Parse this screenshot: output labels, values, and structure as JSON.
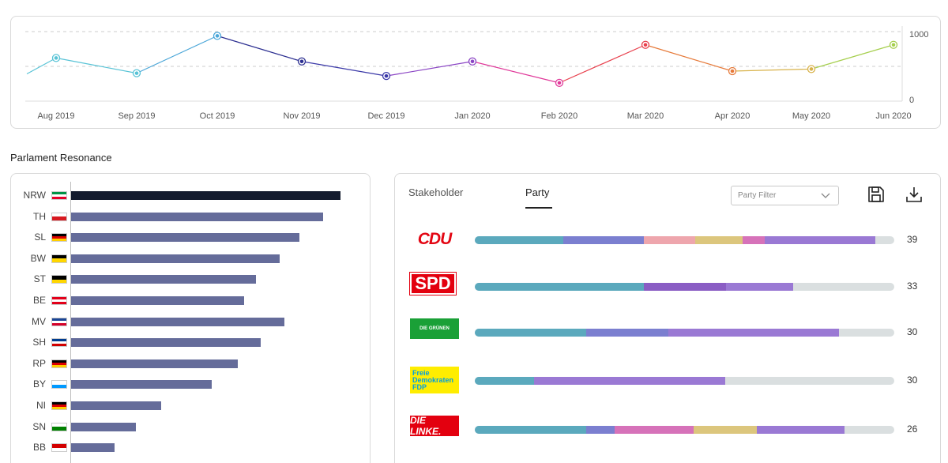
{
  "timeline": {
    "y_axis_labels": [
      "1000",
      "0"
    ],
    "months": [
      "Aug 2019",
      "Sep 2019",
      "Oct 2019",
      "Nov 2019",
      "Dec 2019",
      "Jan 2020",
      "Feb 2020",
      "Mar 2020",
      "Apr 2020",
      "May 2020",
      "Jun 2020"
    ],
    "values": [
      590,
      370,
      910,
      540,
      330,
      540,
      230,
      780,
      400,
      430,
      780
    ],
    "start_value": 360,
    "point_colors": [
      "#58c3d6",
      "#58c3d6",
      "#4aa6d8",
      "#2c2f91",
      "#3b39a8",
      "#8a44c4",
      "#e0399a",
      "#e8404d",
      "#e67a3a",
      "#d8b24a",
      "#a6cf4e"
    ]
  },
  "section_title": "Parlament Resonance",
  "states": [
    {
      "code": "NRW",
      "value": 100,
      "flag": [
        "#009246",
        "#ffffff",
        "#e4002b"
      ],
      "highlight": true
    },
    {
      "code": "TH",
      "value": 93.5,
      "flag": [
        "#ffffff",
        "#d71920"
      ]
    },
    {
      "code": "SL",
      "value": 84.7,
      "flag": [
        "#000000",
        "#dd0000",
        "#ffce00"
      ]
    },
    {
      "code": "BW",
      "value": 77.4,
      "flag": [
        "#000000",
        "#ffd600"
      ]
    },
    {
      "code": "ST",
      "value": 68.6,
      "flag": [
        "#000000",
        "#ffd600"
      ]
    },
    {
      "code": "BE",
      "value": 64.2,
      "flag": [
        "#e2001a",
        "#ffffff",
        "#e2001a"
      ]
    },
    {
      "code": "MV",
      "value": 79.2,
      "flag": [
        "#1a4595",
        "#ffffff",
        "#d40029"
      ]
    },
    {
      "code": "SH",
      "value": 70.4,
      "flag": [
        "#003c8f",
        "#ffffff",
        "#d00000"
      ]
    },
    {
      "code": "RP",
      "value": 61.9,
      "flag": [
        "#000000",
        "#dd0000",
        "#ffce00"
      ]
    },
    {
      "code": "BY",
      "value": 52.2,
      "flag": [
        "#ffffff",
        "#0099ff"
      ]
    },
    {
      "code": "NI",
      "value": 33.4,
      "flag": [
        "#000000",
        "#dd0000",
        "#ffce00"
      ]
    },
    {
      "code": "SN",
      "value": 24.0,
      "flag": [
        "#ffffff",
        "#008000"
      ]
    },
    {
      "code": "BB",
      "value": 16.1,
      "flag": [
        "#d30000",
        "#ffffff"
      ]
    }
  ],
  "party_panel": {
    "tabs": [
      "Stakeholder",
      "Party"
    ],
    "active_tab": "Party",
    "filter_placeholder": "Party Filter",
    "parties": [
      {
        "name": "CDU",
        "count": "39",
        "segments": [
          {
            "share": 21.1,
            "color": "#5ba9bd"
          },
          {
            "share": 19.2,
            "color": "#7b7fd0"
          },
          {
            "share": 12.2,
            "color": "#eea6ad"
          },
          {
            "share": 11.3,
            "color": "#dcc67d"
          },
          {
            "share": 5.3,
            "color": "#d672b9"
          },
          {
            "share": 26.4,
            "color": "#9a79d4"
          }
        ]
      },
      {
        "name": "SPD",
        "count": "33",
        "segments": [
          {
            "share": 40.3,
            "color": "#5ba9bd"
          },
          {
            "share": 19.6,
            "color": "#8a5dc4"
          },
          {
            "share": 16.0,
            "color": "#9a79d4"
          }
        ]
      },
      {
        "name": "DIE GRÜNEN",
        "count": "30",
        "segments": [
          {
            "share": 26.6,
            "color": "#5ba9bd"
          },
          {
            "share": 19.6,
            "color": "#7b7fd0"
          },
          {
            "share": 40.7,
            "color": "#9a79d4"
          }
        ]
      },
      {
        "name": "Freie Demokraten FDP",
        "count": "30",
        "segments": [
          {
            "share": 14.1,
            "color": "#5ba9bd"
          },
          {
            "share": 45.6,
            "color": "#9a79d4"
          }
        ]
      },
      {
        "name": "DIE LINKE.",
        "count": "26",
        "segments": [
          {
            "share": 26.6,
            "color": "#5ba9bd"
          },
          {
            "share": 6.8,
            "color": "#7b7fd0"
          },
          {
            "share": 18.8,
            "color": "#d672b9"
          },
          {
            "share": 15.1,
            "color": "#dcc67d"
          },
          {
            "share": 20.9,
            "color": "#9a79d4"
          }
        ]
      }
    ]
  }
}
